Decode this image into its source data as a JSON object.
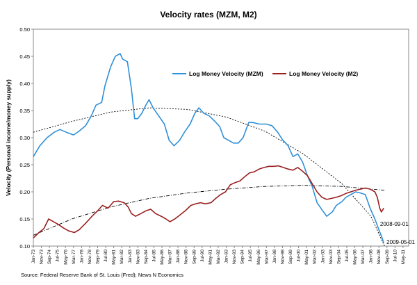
{
  "chart_data": {
    "type": "line",
    "title": "Velocity rates (MZM, M2)",
    "ylabel": "Velocity (Personal income/money supply)",
    "xlabel": "",
    "ylim": [
      0.1,
      0.5
    ],
    "yticks": [
      "0.10",
      "0.15",
      "0.20",
      "0.25",
      "0.30",
      "0.35",
      "0.40",
      "0.45",
      "0.50"
    ],
    "xlim": [
      "1973-01",
      "2011-12"
    ],
    "xticks": [
      "Jan-73",
      "Nov-73",
      "Sep-74",
      "Jul-75",
      "May-76",
      "Mar-77",
      "Jan-78",
      "Nov-78",
      "Sep-79",
      "Jul-80",
      "May-81",
      "Mar-82",
      "Jan-83",
      "Nov-83",
      "Sep-84",
      "Jul-85",
      "May-86",
      "Mar-87",
      "Jan-88",
      "Nov-88",
      "Sep-89",
      "Jul-90",
      "May-91",
      "Mar-92",
      "Jan-93",
      "Nov-93",
      "Sep-94",
      "Jul-95",
      "May-96",
      "Mar-97",
      "Jan-98",
      "Nov-98",
      "Sep-99",
      "Jul-00",
      "May-01",
      "Mar-02",
      "Jan-03",
      "Nov-03",
      "Sep-04",
      "Jul-05",
      "May-06",
      "Mar-07",
      "Jan-08",
      "Nov-08",
      "Sep-09",
      "Jul-10",
      "May-11"
    ],
    "grid": false,
    "legend_position": "top-right",
    "series": [
      {
        "name": "Log Money Velocity (MZM)",
        "color": "#2f8fd8",
        "points": [
          [
            "1973-01",
            0.265
          ],
          [
            "1973-09",
            0.285
          ],
          [
            "1974-06",
            0.3
          ],
          [
            "1975-03",
            0.31
          ],
          [
            "1975-10",
            0.315
          ],
          [
            "1976-06",
            0.31
          ],
          [
            "1977-03",
            0.305
          ],
          [
            "1977-10",
            0.312
          ],
          [
            "1978-06",
            0.322
          ],
          [
            "1979-01",
            0.34
          ],
          [
            "1979-07",
            0.36
          ],
          [
            "1980-02",
            0.365
          ],
          [
            "1980-06",
            0.395
          ],
          [
            "1981-01",
            0.43
          ],
          [
            "1981-07",
            0.45
          ],
          [
            "1982-01",
            0.455
          ],
          [
            "1982-04",
            0.445
          ],
          [
            "1982-10",
            0.44
          ],
          [
            "1983-03",
            0.39
          ],
          [
            "1983-07",
            0.335
          ],
          [
            "1983-11",
            0.335
          ],
          [
            "1984-04",
            0.345
          ],
          [
            "1984-09",
            0.36
          ],
          [
            "1985-01",
            0.37
          ],
          [
            "1985-06",
            0.355
          ],
          [
            "1986-01",
            0.34
          ],
          [
            "1986-08",
            0.325
          ],
          [
            "1987-02",
            0.295
          ],
          [
            "1987-08",
            0.285
          ],
          [
            "1988-03",
            0.295
          ],
          [
            "1988-09",
            0.31
          ],
          [
            "1989-04",
            0.325
          ],
          [
            "1989-10",
            0.345
          ],
          [
            "1990-03",
            0.355
          ],
          [
            "1990-09",
            0.345
          ],
          [
            "1991-04",
            0.34
          ],
          [
            "1991-11",
            0.33
          ],
          [
            "1992-05",
            0.32
          ],
          [
            "1992-10",
            0.3
          ],
          [
            "1993-04",
            0.295
          ],
          [
            "1993-10",
            0.29
          ],
          [
            "1994-04",
            0.29
          ],
          [
            "1994-10",
            0.3
          ],
          [
            "1995-05",
            0.328
          ],
          [
            "1995-10",
            0.328
          ],
          [
            "1996-06",
            0.325
          ],
          [
            "1997-03",
            0.325
          ],
          [
            "1997-10",
            0.322
          ],
          [
            "1998-05",
            0.31
          ],
          [
            "1998-11",
            0.296
          ],
          [
            "1999-06",
            0.285
          ],
          [
            "1999-12",
            0.265
          ],
          [
            "2000-06",
            0.27
          ],
          [
            "2000-12",
            0.255
          ],
          [
            "2001-06",
            0.23
          ],
          [
            "2001-12",
            0.21
          ],
          [
            "2002-06",
            0.18
          ],
          [
            "2003-01",
            0.165
          ],
          [
            "2003-06",
            0.155
          ],
          [
            "2004-01",
            0.163
          ],
          [
            "2004-06",
            0.175
          ],
          [
            "2005-01",
            0.182
          ],
          [
            "2005-06",
            0.19
          ],
          [
            "2005-12",
            0.195
          ],
          [
            "2006-06",
            0.2
          ],
          [
            "2006-12",
            0.198
          ],
          [
            "2007-06",
            0.195
          ],
          [
            "2007-12",
            0.17
          ],
          [
            "2008-06",
            0.15
          ],
          [
            "2008-11",
            0.13
          ],
          [
            "2009-03",
            0.115
          ],
          [
            "2009-05",
            0.105
          ]
        ]
      },
      {
        "name": "Log Money Velocity (M2)",
        "color": "#9a1f1f",
        "points": [
          [
            "1973-01",
            0.115
          ],
          [
            "1973-08",
            0.125
          ],
          [
            "1974-02",
            0.132
          ],
          [
            "1974-08",
            0.15
          ],
          [
            "1975-02",
            0.145
          ],
          [
            "1975-08",
            0.14
          ],
          [
            "1976-03",
            0.133
          ],
          [
            "1976-09",
            0.128
          ],
          [
            "1977-04",
            0.125
          ],
          [
            "1977-10",
            0.13
          ],
          [
            "1978-06",
            0.142
          ],
          [
            "1979-02",
            0.155
          ],
          [
            "1979-09",
            0.165
          ],
          [
            "1980-03",
            0.175
          ],
          [
            "1980-10",
            0.17
          ],
          [
            "1981-05",
            0.182
          ],
          [
            "1981-11",
            0.183
          ],
          [
            "1982-06",
            0.18
          ],
          [
            "1982-11",
            0.172
          ],
          [
            "1983-03",
            0.16
          ],
          [
            "1983-08",
            0.155
          ],
          [
            "1984-03",
            0.16
          ],
          [
            "1984-09",
            0.165
          ],
          [
            "1985-03",
            0.168
          ],
          [
            "1985-09",
            0.16
          ],
          [
            "1986-04",
            0.155
          ],
          [
            "1986-10",
            0.15
          ],
          [
            "1987-03",
            0.145
          ],
          [
            "1987-09",
            0.15
          ],
          [
            "1988-04",
            0.158
          ],
          [
            "1988-10",
            0.165
          ],
          [
            "1989-05",
            0.175
          ],
          [
            "1989-11",
            0.178
          ],
          [
            "1990-05",
            0.18
          ],
          [
            "1990-11",
            0.178
          ],
          [
            "1991-06",
            0.18
          ],
          [
            "1991-12",
            0.188
          ],
          [
            "1992-06",
            0.195
          ],
          [
            "1992-12",
            0.2
          ],
          [
            "1993-06",
            0.213
          ],
          [
            "1993-12",
            0.217
          ],
          [
            "1994-06",
            0.22
          ],
          [
            "1994-12",
            0.228
          ],
          [
            "1995-06",
            0.235
          ],
          [
            "1995-12",
            0.237
          ],
          [
            "1996-06",
            0.242
          ],
          [
            "1996-12",
            0.245
          ],
          [
            "1997-06",
            0.247
          ],
          [
            "1997-12",
            0.247
          ],
          [
            "1998-06",
            0.248
          ],
          [
            "1998-12",
            0.245
          ],
          [
            "1999-06",
            0.242
          ],
          [
            "1999-12",
            0.24
          ],
          [
            "2000-06",
            0.245
          ],
          [
            "2000-12",
            0.238
          ],
          [
            "2001-06",
            0.23
          ],
          [
            "2001-12",
            0.215
          ],
          [
            "2002-06",
            0.2
          ],
          [
            "2002-12",
            0.19
          ],
          [
            "2003-06",
            0.186
          ],
          [
            "2003-12",
            0.188
          ],
          [
            "2004-06",
            0.19
          ],
          [
            "2004-12",
            0.193
          ],
          [
            "2005-06",
            0.197
          ],
          [
            "2005-12",
            0.2
          ],
          [
            "2006-06",
            0.203
          ],
          [
            "2006-12",
            0.205
          ],
          [
            "2007-06",
            0.207
          ],
          [
            "2007-12",
            0.205
          ],
          [
            "2008-06",
            0.2
          ],
          [
            "2008-09",
            0.19
          ],
          [
            "2008-12",
            0.17
          ],
          [
            "2009-02",
            0.163
          ],
          [
            "2009-05",
            0.17
          ]
        ]
      }
    ],
    "trendlines": [
      {
        "style": "dotted",
        "color": "#000000",
        "points": [
          [
            "1973-01",
            0.31
          ],
          [
            "1977-01",
            0.33
          ],
          [
            "1981-01",
            0.347
          ],
          [
            "1985-01",
            0.355
          ],
          [
            "1989-01",
            0.352
          ],
          [
            "1993-01",
            0.338
          ],
          [
            "1997-01",
            0.312
          ],
          [
            "2001-01",
            0.27
          ],
          [
            "2005-01",
            0.215
          ],
          [
            "2008-01",
            0.155
          ],
          [
            "2009-06",
            0.1
          ]
        ]
      },
      {
        "style": "dash-dot",
        "color": "#000000",
        "points": [
          [
            "1973-01",
            0.12
          ],
          [
            "1977-01",
            0.15
          ],
          [
            "1981-01",
            0.172
          ],
          [
            "1985-01",
            0.188
          ],
          [
            "1989-01",
            0.198
          ],
          [
            "1993-01",
            0.205
          ],
          [
            "1997-01",
            0.21
          ],
          [
            "2001-01",
            0.212
          ],
          [
            "2005-01",
            0.21
          ],
          [
            "2009-06",
            0.203
          ]
        ]
      }
    ],
    "annotations": [
      {
        "text": "2008-09-01",
        "x": "2008-09",
        "y": 0.13
      },
      {
        "text": "2009-05-01",
        "x": "2009-05",
        "y": 0.1
      }
    ],
    "source": "Source: Federal Reserve Bank of St. Louis (Fred); News N Economics"
  }
}
